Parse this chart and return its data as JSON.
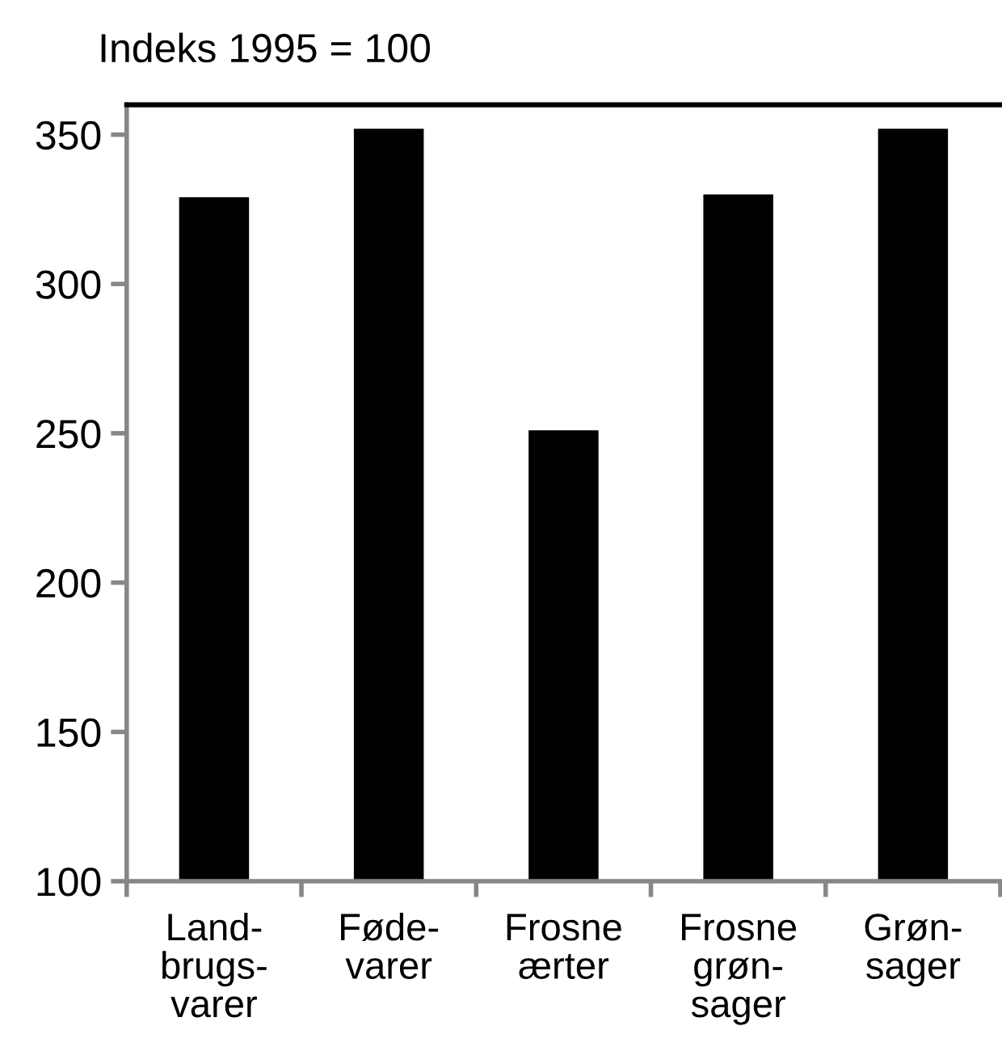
{
  "chart_data": {
    "type": "bar",
    "ylabel": "Indeks 1995 = 100",
    "categories": [
      "Land-\nbrugs-\nvarer",
      "Føde-\nvarer",
      "Frosne\nærter",
      "Frosne\ngrøn-\nsager",
      "Grøn-\nsager"
    ],
    "values": [
      329,
      352,
      251,
      330,
      352
    ],
    "color": "#000000",
    "ylim": [
      100,
      360
    ],
    "yticks": [
      100,
      150,
      200,
      250,
      300,
      350
    ],
    "grid": false
  }
}
